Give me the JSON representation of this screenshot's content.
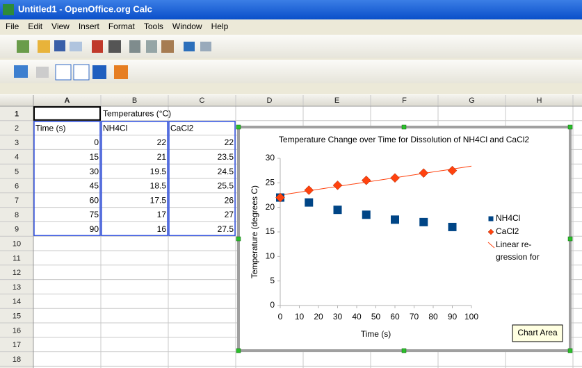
{
  "window": {
    "title": "Untitled1 - OpenOffice.org Calc"
  },
  "menu": [
    "File",
    "Edit",
    "View",
    "Insert",
    "Format",
    "Tools",
    "Window",
    "Help"
  ],
  "sheet": {
    "columns": [
      "A",
      "B",
      "C",
      "D",
      "E",
      "F",
      "G",
      "H"
    ],
    "rows": [
      1,
      2,
      3,
      4,
      5,
      6,
      7,
      8,
      9,
      10,
      11,
      12,
      13,
      14,
      15,
      16,
      17,
      18
    ],
    "cells": {
      "B1": "Temperatures (°C)",
      "A2": "Time (s)"
    }
  },
  "chart_data": {
    "type": "scatter",
    "title": "Temperature Change over Time for Dissolution of NH4Cl and CaCl2",
    "x_label": "Time (s)",
    "y_label": "Temperature (degrees C)",
    "x": [
      0,
      15,
      30,
      45,
      60,
      75,
      90
    ],
    "series": [
      {
        "name": "NH4Cl",
        "color": "#004586",
        "marker": "square",
        "values": [
          22,
          21,
          19.5,
          18.5,
          17.5,
          17,
          16
        ]
      },
      {
        "name": "CaCl2",
        "color": "#ff420e",
        "marker": "diamond",
        "values": [
          22,
          23.5,
          24.5,
          25.5,
          26,
          27,
          27.5
        ]
      }
    ],
    "trendline": {
      "legend_lines": [
        "Linear re-",
        "gression for"
      ],
      "color": "#ff420e",
      "x": [
        0,
        100
      ],
      "values": [
        22.5,
        28.4
      ]
    },
    "xlim": [
      0,
      100
    ],
    "ylim": [
      0,
      30
    ],
    "xticks": [
      0,
      10,
      20,
      30,
      40,
      50,
      60,
      70,
      80,
      90,
      100
    ],
    "yticks": [
      0,
      5,
      10,
      15,
      20,
      25,
      30
    ],
    "grid": false,
    "legend": "right"
  },
  "tooltip": "Chart Area"
}
